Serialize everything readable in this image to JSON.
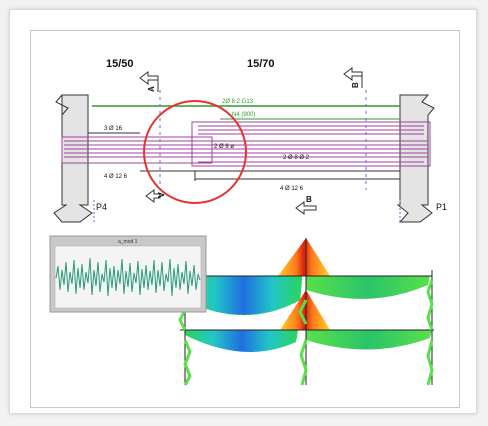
{
  "labels": {
    "section_left": "15/50",
    "section_right": "15/70",
    "cut_a": "A",
    "cut_b": "B",
    "support_left": "P4",
    "support_right": "P1",
    "rebar_top_green": "2Ø 8 2 G13",
    "rebar_top_green_2": "N4  (900)",
    "rebar_left_top": "3 Ø 16",
    "rebar_mid": "2 Ø 8 ø",
    "rebar_mid_right": "2 Ø 8 Ø 2",
    "rebar_left_bottom": "4 Ø 12 6",
    "rebar_right_bottom": "4 Ø 12 6",
    "inset_title": "a_mod 1"
  },
  "colors": {
    "green_bar": "#2e9c2e",
    "magenta_bar": "#a040a0",
    "highlight_circle": "#e53333",
    "signal": "#2a9a7a",
    "column_fill": "#e4e4e4"
  }
}
